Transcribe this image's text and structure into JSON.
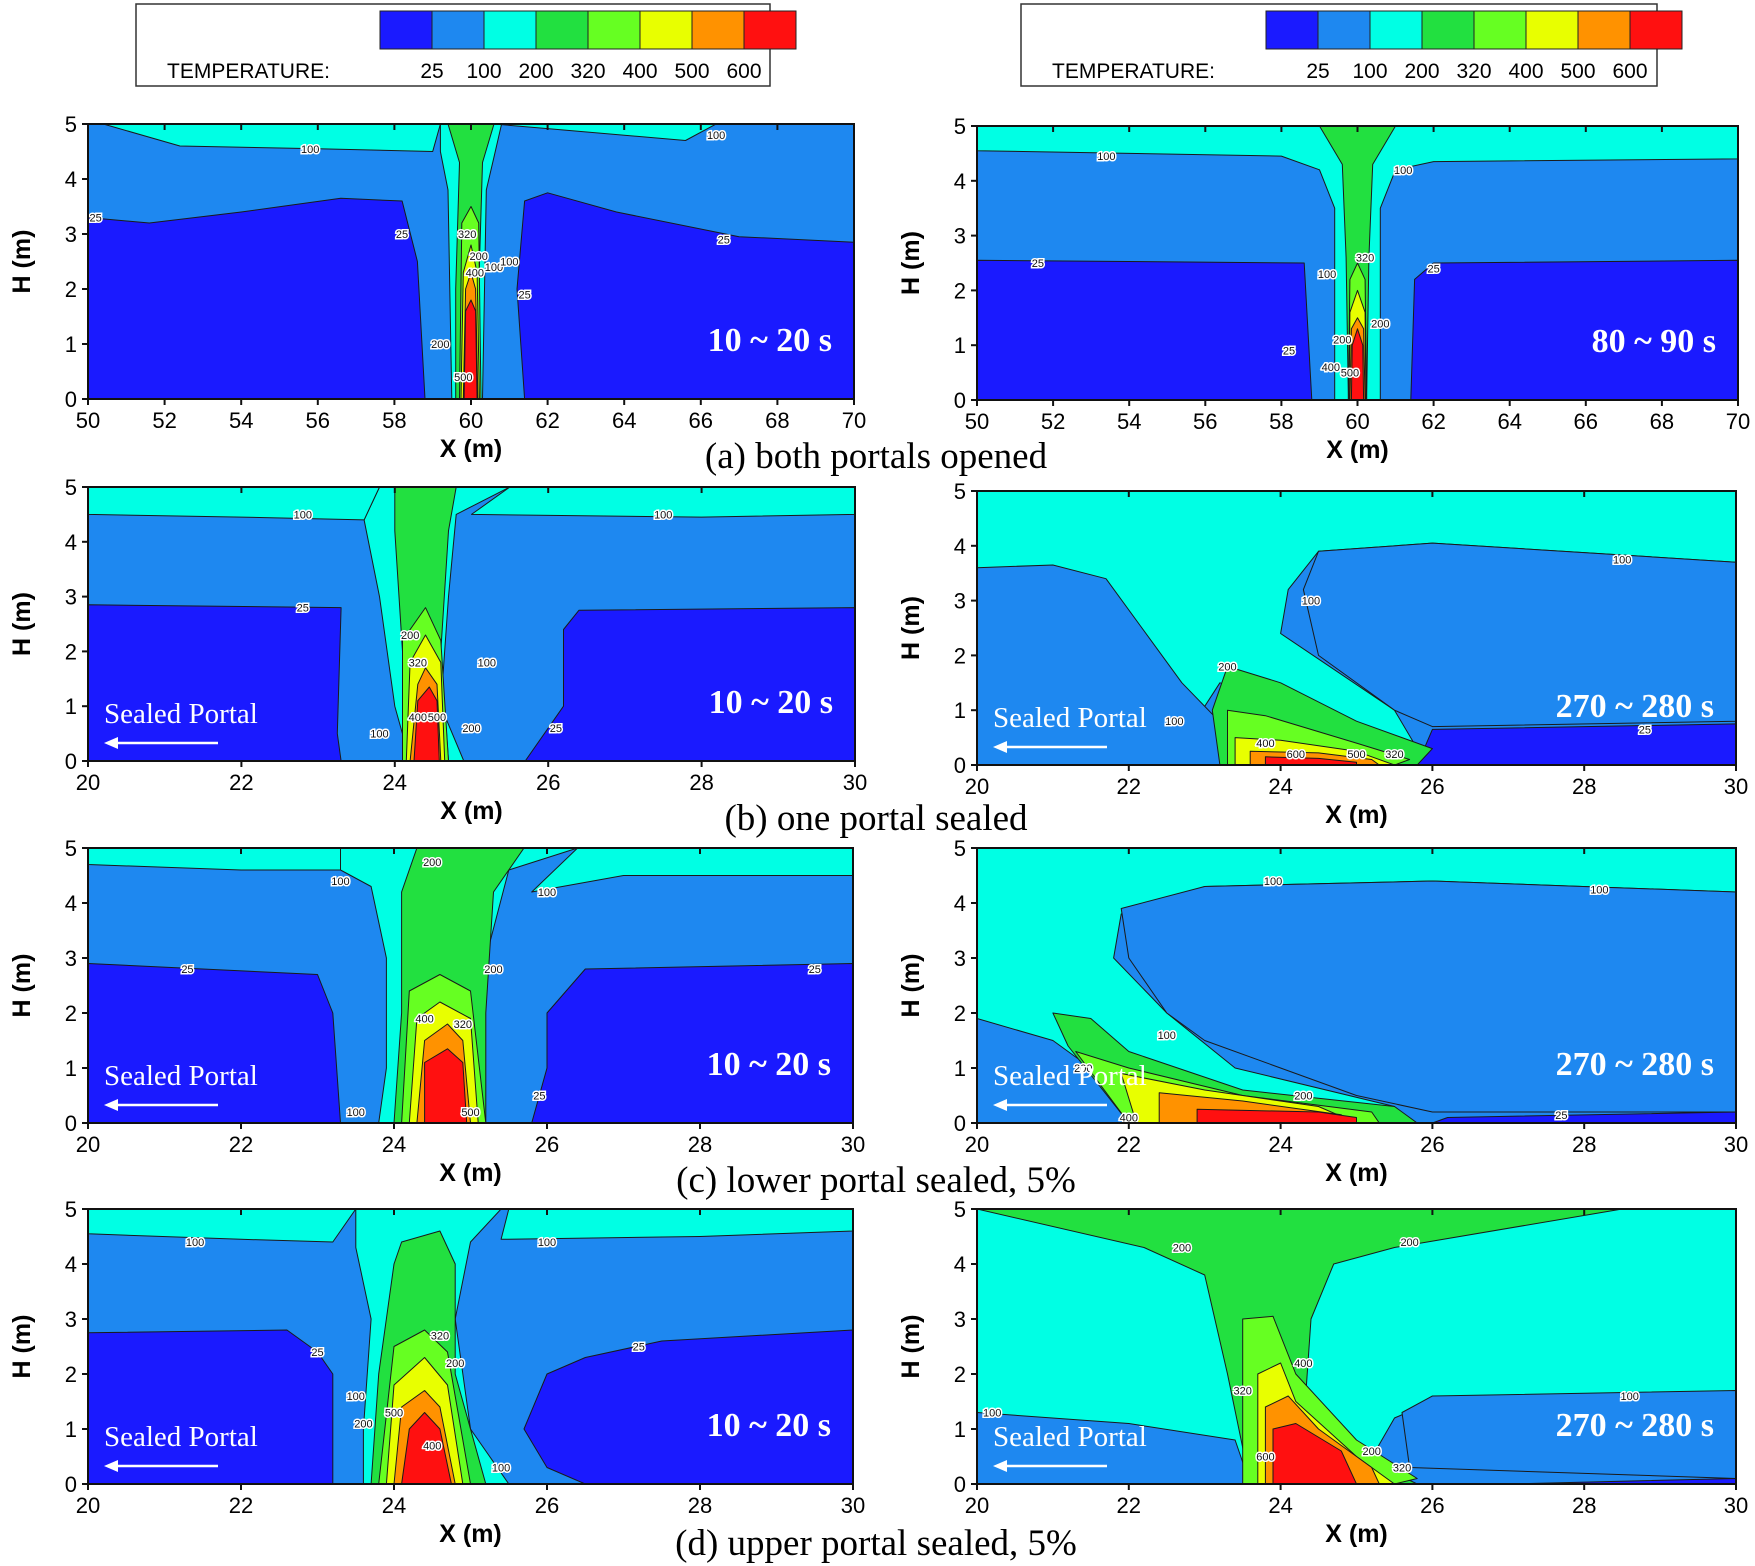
{
  "figure": {
    "captions": [
      "(a) both portals opened",
      "(b) one portal sealed",
      "(c) lower portal sealed, 5%",
      "(d) upper portal sealed, 5%"
    ],
    "legend": {
      "label": "TEMPERATURE:",
      "levels": [
        {
          "value": "25",
          "color": "#1a1aff"
        },
        {
          "value": "100",
          "color": "#1e88f0"
        },
        {
          "value": "200",
          "color": "#00ffe4"
        },
        {
          "value": "320",
          "color": "#22e040"
        },
        {
          "value": "400",
          "color": "#66ff22"
        },
        {
          "value": "500",
          "color": "#e8ff00"
        },
        {
          "value": "600",
          "color": "#ff9200"
        }
      ],
      "top_color": "#ff1010"
    },
    "sealed_portal_label": "Sealed Portal"
  },
  "chart_data": [
    {
      "type": "contour",
      "panel": "a-left",
      "title": "(a) both portals opened",
      "time_window": "10 ~ 20 s",
      "xlabel": "X (m)",
      "ylabel": "H (m)",
      "xlim": [
        50,
        70
      ],
      "ylim": [
        0,
        5
      ],
      "xticks": [
        "50",
        "52",
        "54",
        "56",
        "58",
        "60",
        "62",
        "64",
        "66",
        "68",
        "70"
      ],
      "yticks": [
        "0",
        "1",
        "2",
        "3",
        "4",
        "5"
      ],
      "sealed_portal": false,
      "contour_labels": [
        "100",
        "100",
        "25",
        "25",
        "25",
        "100",
        "200",
        "320",
        "400",
        "25",
        "200",
        "500",
        "100"
      ],
      "fire_x": 60
    },
    {
      "type": "contour",
      "panel": "a-right",
      "title": "(a) both portals opened",
      "time_window": "80 ~ 90 s",
      "xlabel": "X (m)",
      "ylabel": "H (m)",
      "xlim": [
        50,
        70
      ],
      "ylim": [
        0,
        5
      ],
      "xticks": [
        "50",
        "52",
        "54",
        "56",
        "58",
        "60",
        "62",
        "64",
        "66",
        "68",
        "70"
      ],
      "yticks": [
        "0",
        "1",
        "2",
        "3",
        "4",
        "5"
      ],
      "sealed_portal": false,
      "contour_labels": [
        "100",
        "100",
        "25",
        "25",
        "100",
        "320",
        "200",
        "25",
        "200",
        "400",
        "500"
      ],
      "fire_x": 60
    },
    {
      "type": "contour",
      "panel": "b-left",
      "title": "(b) one portal sealed",
      "time_window": "10 ~ 20 s",
      "xlabel": "X (m)",
      "ylabel": "H (m)",
      "xlim": [
        20,
        30
      ],
      "ylim": [
        0,
        5
      ],
      "xticks": [
        "20",
        "22",
        "24",
        "26",
        "28",
        "30"
      ],
      "yticks": [
        "0",
        "1",
        "2",
        "3",
        "4",
        "5"
      ],
      "sealed_portal": true,
      "contour_labels": [
        "100",
        "100",
        "25",
        "200",
        "320",
        "400",
        "500",
        "100",
        "200",
        "100",
        "25"
      ],
      "fire_x": 25
    },
    {
      "type": "contour",
      "panel": "b-right",
      "title": "(b) one portal sealed",
      "time_window": "270 ~ 280 s",
      "xlabel": "X (m)",
      "ylabel": "H (m)",
      "xlim": [
        20,
        30
      ],
      "ylim": [
        0,
        5
      ],
      "xticks": [
        "20",
        "22",
        "24",
        "26",
        "28",
        "30"
      ],
      "yticks": [
        "0",
        "1",
        "2",
        "3",
        "4",
        "5"
      ],
      "sealed_portal": true,
      "contour_labels": [
        "100",
        "100",
        "200",
        "100",
        "400",
        "600",
        "500",
        "320",
        "25"
      ],
      "fire_x": 24.5
    },
    {
      "type": "contour",
      "panel": "c-left",
      "title": "(c) lower portal sealed, 5%",
      "time_window": "10 ~ 20 s",
      "xlabel": "X (m)",
      "ylabel": "H (m)",
      "xlim": [
        20,
        30
      ],
      "ylim": [
        0,
        5
      ],
      "xticks": [
        "20",
        "22",
        "24",
        "26",
        "28",
        "30"
      ],
      "yticks": [
        "0",
        "1",
        "2",
        "3",
        "4",
        "5"
      ],
      "sealed_portal": true,
      "contour_labels": [
        "100",
        "200",
        "100",
        "25",
        "200",
        "25",
        "400",
        "320",
        "500",
        "25",
        "100"
      ],
      "fire_x": 25.2
    },
    {
      "type": "contour",
      "panel": "c-right",
      "title": "(c) lower portal sealed, 5%",
      "time_window": "270 ~ 280 s",
      "xlabel": "X (m)",
      "ylabel": "H (m)",
      "xlim": [
        20,
        30
      ],
      "ylim": [
        0,
        5
      ],
      "xticks": [
        "20",
        "22",
        "24",
        "26",
        "28",
        "30"
      ],
      "yticks": [
        "0",
        "1",
        "2",
        "3",
        "4",
        "5"
      ],
      "sealed_portal": true,
      "contour_labels": [
        "100",
        "100",
        "100",
        "200",
        "200",
        "400",
        "25"
      ],
      "fire_x": 23.5
    },
    {
      "type": "contour",
      "panel": "d-left",
      "title": "(d) upper portal sealed, 5%",
      "time_window": "10 ~ 20 s",
      "xlabel": "X (m)",
      "ylabel": "H (m)",
      "xlim": [
        20,
        30
      ],
      "ylim": [
        0,
        5
      ],
      "xticks": [
        "20",
        "22",
        "24",
        "26",
        "28",
        "30"
      ],
      "yticks": [
        "0",
        "1",
        "2",
        "3",
        "4",
        "5"
      ],
      "sealed_portal": true,
      "contour_labels": [
        "100",
        "100",
        "25",
        "25",
        "100",
        "200",
        "200",
        "320",
        "500",
        "400",
        "100"
      ],
      "fire_x": 25
    },
    {
      "type": "contour",
      "panel": "d-right",
      "title": "(d) upper portal sealed, 5%",
      "time_window": "270 ~ 280 s",
      "xlabel": "X (m)",
      "ylabel": "H (m)",
      "xlim": [
        20,
        30
      ],
      "ylim": [
        0,
        5
      ],
      "xticks": [
        "20",
        "22",
        "24",
        "26",
        "28",
        "30"
      ],
      "yticks": [
        "0",
        "1",
        "2",
        "3",
        "4",
        "5"
      ],
      "sealed_portal": true,
      "contour_labels": [
        "200",
        "200",
        "100",
        "100",
        "320",
        "400",
        "600",
        "200",
        "320"
      ],
      "fire_x": 24.5
    }
  ]
}
